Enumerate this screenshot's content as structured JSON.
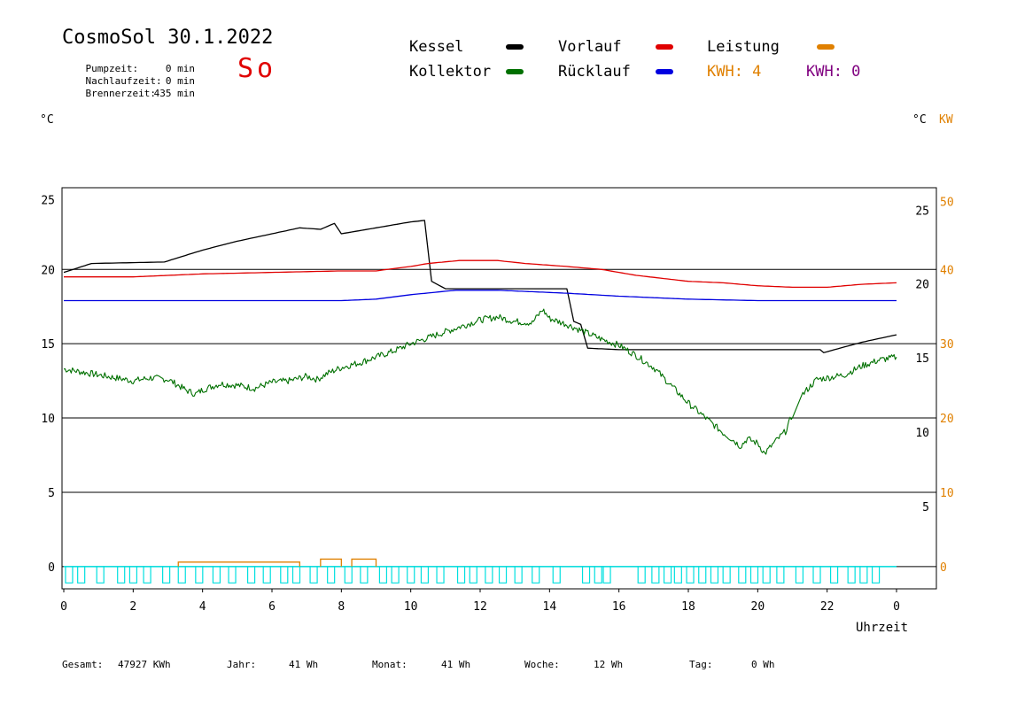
{
  "header": {
    "title": "CosmoSol 30.1.2022",
    "day": "So",
    "stats": [
      {
        "label": "Pumpzeit:",
        "value": "0 min"
      },
      {
        "label": "Nachlaufzeit:",
        "value": "0 min"
      },
      {
        "label": "Brennerzeit:",
        "value": "435 min"
      }
    ]
  },
  "legend": {
    "kessel": "Kessel",
    "vorlauf": "Vorlauf",
    "leistung": "Leistung",
    "kollektor": "Kollektor",
    "ruecklauf": "Rücklauf",
    "kwh1": "KWH: 4",
    "kwh2": "KWH: 0"
  },
  "colors": {
    "kessel": "#000000",
    "vorlauf": "#e00000",
    "ruecklauf": "#0000e0",
    "kollektor": "#007000",
    "leistung": "#e08000",
    "kwh2": "#800080",
    "pump": "#00e0e0",
    "grid": "#000000"
  },
  "units": {
    "left": "°C",
    "right": "°C",
    "right_kw": "KW"
  },
  "xlabel": "Uhrzeit",
  "footer": {
    "gesamt_label": "Gesamt:",
    "gesamt_value": "47927 KWh",
    "jahr_label": "Jahr:",
    "jahr_value": "41 Wh",
    "monat_label": "Monat:",
    "monat_value": "41 Wh",
    "woche_label": "Woche:",
    "woche_value": "12 Wh",
    "tag_label": "Tag:",
    "tag_value": "0 Wh"
  },
  "chart_data": {
    "type": "line",
    "x_ticks": [
      "0",
      "2",
      "4",
      "6",
      "8",
      "10",
      "12",
      "14",
      "16",
      "18",
      "20",
      "22",
      "0"
    ],
    "xlim": [
      0,
      24
    ],
    "ylim": [
      -1.5,
      25.5
    ],
    "y_ticks_left": [
      "25",
      "20",
      "15",
      "10",
      "5",
      "0"
    ],
    "y_ticks_right_temp": [
      "25",
      "20",
      "15",
      "10",
      "5"
    ],
    "y_ticks_right_kw": [
      "50",
      "40",
      "30",
      "20",
      "10",
      "0"
    ],
    "gridlines": [
      20,
      15,
      10,
      5,
      0
    ],
    "series": [
      {
        "name": "Kessel",
        "color": "#000000",
        "points": [
          [
            0,
            19.8
          ],
          [
            0.8,
            20.4
          ],
          [
            2.9,
            20.5
          ],
          [
            4,
            21.3
          ],
          [
            5,
            21.9
          ],
          [
            6,
            22.4
          ],
          [
            6.8,
            22.8
          ],
          [
            7.4,
            22.7
          ],
          [
            7.8,
            23.1
          ],
          [
            8.0,
            22.4
          ],
          [
            9,
            22.8
          ],
          [
            10,
            23.2
          ],
          [
            10.4,
            23.3
          ],
          [
            10.6,
            19.2
          ],
          [
            11,
            18.7
          ],
          [
            14.5,
            18.7
          ],
          [
            14.7,
            16.5
          ],
          [
            14.9,
            16.3
          ],
          [
            15.1,
            14.7
          ],
          [
            16,
            14.6
          ],
          [
            21.8,
            14.6
          ],
          [
            21.9,
            14.4
          ],
          [
            23,
            15.1
          ],
          [
            24,
            15.6
          ]
        ]
      },
      {
        "name": "Vorlauf",
        "color": "#e00000",
        "points": [
          [
            0,
            19.5
          ],
          [
            2,
            19.5
          ],
          [
            4,
            19.7
          ],
          [
            6,
            19.8
          ],
          [
            8,
            19.9
          ],
          [
            9,
            19.9
          ],
          [
            10,
            20.2
          ],
          [
            10.5,
            20.4
          ],
          [
            11.4,
            20.6
          ],
          [
            12.5,
            20.6
          ],
          [
            13.3,
            20.4
          ],
          [
            14.5,
            20.2
          ],
          [
            15.5,
            20.0
          ],
          [
            16.5,
            19.6
          ],
          [
            18,
            19.2
          ],
          [
            19,
            19.1
          ],
          [
            20,
            18.9
          ],
          [
            21,
            18.8
          ],
          [
            22,
            18.8
          ],
          [
            23,
            19.0
          ],
          [
            24,
            19.1
          ]
        ]
      },
      {
        "name": "Rücklauf",
        "color": "#0000e0",
        "points": [
          [
            0,
            17.9
          ],
          [
            2,
            17.9
          ],
          [
            4,
            17.9
          ],
          [
            6,
            17.9
          ],
          [
            8,
            17.9
          ],
          [
            9,
            18.0
          ],
          [
            10,
            18.3
          ],
          [
            11.3,
            18.6
          ],
          [
            12.5,
            18.6
          ],
          [
            13.5,
            18.5
          ],
          [
            14.5,
            18.4
          ],
          [
            16,
            18.2
          ],
          [
            17,
            18.1
          ],
          [
            18,
            18.0
          ],
          [
            20,
            17.9
          ],
          [
            22,
            17.9
          ],
          [
            24,
            17.9
          ]
        ]
      },
      {
        "name": "Kollektor",
        "color": "#007000",
        "points": [
          [
            0,
            13.3
          ],
          [
            0.5,
            13.1
          ],
          [
            1,
            12.9
          ],
          [
            1.5,
            12.7
          ],
          [
            2,
            12.5
          ],
          [
            2.5,
            12.7
          ],
          [
            3,
            12.6
          ],
          [
            3.3,
            12.2
          ],
          [
            3.5,
            11.9
          ],
          [
            3.8,
            11.6
          ],
          [
            4,
            11.9
          ],
          [
            4.5,
            12.3
          ],
          [
            5,
            12.2
          ],
          [
            5.5,
            12.0
          ],
          [
            6,
            12.4
          ],
          [
            6.5,
            12.5
          ],
          [
            7,
            12.8
          ],
          [
            7.3,
            12.6
          ],
          [
            7.6,
            13.0
          ],
          [
            8,
            13.4
          ],
          [
            8.5,
            13.7
          ],
          [
            9,
            14.1
          ],
          [
            9.5,
            14.5
          ],
          [
            10,
            15.0
          ],
          [
            10.5,
            15.4
          ],
          [
            11,
            15.8
          ],
          [
            11.5,
            16.2
          ],
          [
            12,
            16.6
          ],
          [
            12.5,
            16.8
          ],
          [
            13,
            16.5
          ],
          [
            13.5,
            16.4
          ],
          [
            13.8,
            17.3
          ],
          [
            14,
            16.7
          ],
          [
            14.5,
            16.3
          ],
          [
            15,
            15.8
          ],
          [
            15.5,
            15.3
          ],
          [
            16,
            14.9
          ],
          [
            16.5,
            14.2
          ],
          [
            17,
            13.4
          ],
          [
            17.5,
            12.2
          ],
          [
            18,
            11.0
          ],
          [
            18.5,
            10.0
          ],
          [
            19,
            9.0
          ],
          [
            19.3,
            8.5
          ],
          [
            19.5,
            8.1
          ],
          [
            19.7,
            8.6
          ],
          [
            20,
            8.3
          ],
          [
            20.2,
            7.6
          ],
          [
            20.5,
            8.4
          ],
          [
            20.8,
            9.1
          ],
          [
            21,
            10.2
          ],
          [
            21.3,
            11.6
          ],
          [
            21.7,
            12.6
          ],
          [
            22,
            12.7
          ],
          [
            22.5,
            12.9
          ],
          [
            23,
            13.5
          ],
          [
            23.5,
            13.9
          ],
          [
            24,
            14.1
          ]
        ]
      }
    ],
    "leistung": {
      "name": "Leistung",
      "color": "#e08000",
      "blocks": [
        [
          3.3,
          6.8,
          0.3
        ],
        [
          7.4,
          8.0,
          0.5
        ],
        [
          8.3,
          9.0,
          0.5
        ]
      ]
    },
    "pump_pulses": {
      "color": "#00e0e0",
      "low": -1.1,
      "high": 0,
      "x": [
        0.05,
        0.4,
        0.95,
        1.55,
        1.9,
        2.3,
        2.85,
        3.3,
        3.8,
        4.3,
        4.75,
        5.3,
        5.75,
        6.25,
        6.6,
        7.1,
        7.6,
        8.1,
        8.55,
        9.1,
        9.45,
        9.9,
        10.3,
        10.75,
        11.35,
        11.7,
        12.15,
        12.55,
        13.0,
        13.5,
        14.1,
        14.95,
        15.3,
        15.55,
        16.55,
        16.95,
        17.3,
        17.6,
        17.95,
        18.3,
        18.65,
        19.0,
        19.45,
        19.8,
        20.15,
        20.55,
        21.1,
        21.6,
        22.1,
        22.6,
        22.95,
        23.3
      ]
    }
  }
}
